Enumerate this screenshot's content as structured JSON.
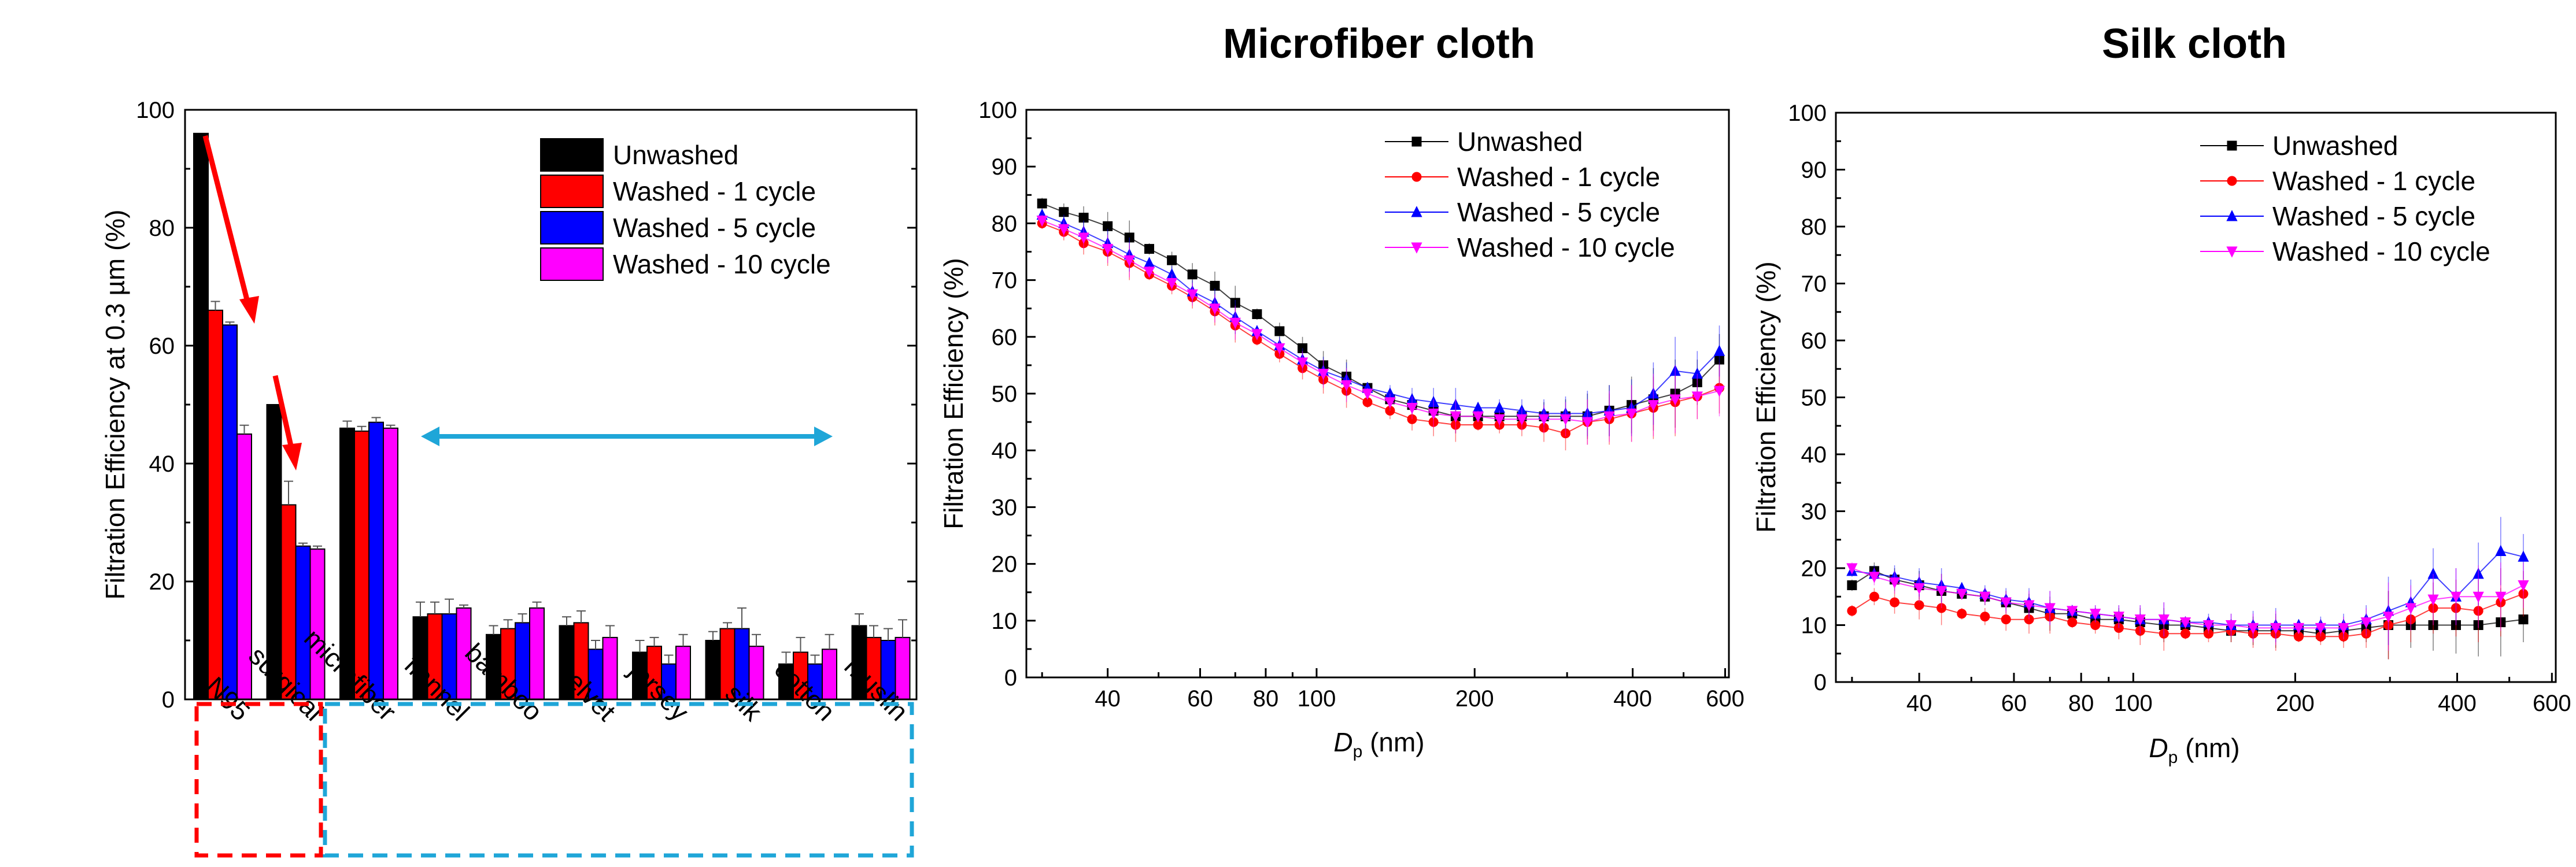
{
  "chart_data": [
    {
      "type": "bar",
      "title": "",
      "ylabel": "Filtration Efficiency at 0.3 µm (%)",
      "xlabel": "",
      "ylim": [
        0,
        100
      ],
      "yticks": [
        0,
        20,
        40,
        60,
        80,
        100
      ],
      "categories": [
        "N95",
        "surgical",
        "microfiber",
        "flannel",
        "bamboo",
        "velvet",
        "jersey",
        "silk",
        "cotton",
        "muslin"
      ],
      "legend_position": "top-right",
      "series": [
        {
          "name": "Unwashed",
          "color": "#000000",
          "values": [
            96,
            50,
            46,
            14,
            11,
            12.5,
            8,
            10,
            6,
            12.5
          ],
          "errors": [
            0,
            0,
            1.2,
            2.5,
            1.5,
            1.5,
            2,
            1.5,
            2,
            2
          ]
        },
        {
          "name": "Washed - 1 cycle",
          "color": "#ff0000",
          "values": [
            66,
            33,
            45.5,
            14.5,
            12,
            13,
            9,
            12,
            8,
            10.5
          ],
          "errors": [
            1.5,
            4,
            0.8,
            2,
            1.5,
            2,
            1.5,
            1,
            2.5,
            2
          ]
        },
        {
          "name": "Washed - 5 cycle",
          "color": "#0000ff",
          "values": [
            63.5,
            26,
            47,
            14.5,
            13,
            8.5,
            6,
            12,
            6,
            10
          ],
          "errors": [
            0.5,
            0.5,
            0.8,
            2.5,
            1.5,
            1.5,
            1.5,
            3.5,
            1.5,
            2
          ]
        },
        {
          "name": "Washed - 10 cycle",
          "color": "#ff00ff",
          "values": [
            45,
            25.5,
            46,
            15.5,
            15.5,
            10.5,
            9,
            9,
            8.5,
            10.5
          ],
          "errors": [
            1.5,
            0.5,
            0.5,
            0.5,
            1,
            2,
            2,
            2,
            2.5,
            3
          ]
        }
      ]
    },
    {
      "type": "line",
      "title": "Microfiber cloth",
      "xlabel": "D",
      "xlabel_sub": "p",
      "xlabel_unit": " (nm)",
      "ylabel": "Filtration Efficiency (%)",
      "xscale": "log",
      "xlim": [
        28,
        610
      ],
      "ylim": [
        0,
        100
      ],
      "xticks": [
        40,
        60,
        80,
        100,
        200,
        400,
        600
      ],
      "yticks": [
        0,
        10,
        20,
        30,
        40,
        50,
        60,
        70,
        80,
        90,
        100
      ],
      "legend_position": "top-right",
      "x": [
        30,
        33,
        36,
        40,
        44,
        48,
        53,
        58,
        64,
        70,
        77,
        85,
        94,
        103,
        114,
        125,
        138,
        152,
        167,
        184,
        203,
        223,
        246,
        271,
        298,
        328,
        361,
        398,
        438,
        482,
        531,
        585
      ],
      "series": [
        {
          "name": "Unwashed",
          "color": "#000000",
          "marker": "square",
          "values": [
            83.5,
            82,
            81,
            79.5,
            77.5,
            75.5,
            73.5,
            71,
            69,
            66,
            64,
            61,
            58,
            55,
            53,
            51,
            49,
            48,
            47,
            46,
            46,
            46,
            46,
            46,
            46,
            46,
            47,
            48,
            49,
            50,
            52,
            56
          ]
        },
        {
          "name": "Washed - 1 cycle",
          "color": "#ff0000",
          "marker": "circle",
          "values": [
            80,
            78.5,
            76.5,
            75,
            73,
            71,
            69,
            67,
            64.5,
            62,
            59.5,
            57,
            54.5,
            52.5,
            50.5,
            48.5,
            47,
            45.5,
            45,
            44.5,
            44.5,
            44.5,
            44.5,
            44,
            43,
            45,
            45.5,
            46.5,
            47.5,
            48.5,
            49.5,
            51
          ]
        },
        {
          "name": "Washed - 5 cycle",
          "color": "#0000ff",
          "marker": "triangle-up",
          "values": [
            81.5,
            80,
            78.5,
            76.5,
            74.5,
            73,
            71,
            68,
            66,
            63.5,
            61,
            58.5,
            56,
            54,
            52.5,
            51,
            50,
            49,
            48.5,
            48,
            47.5,
            47.5,
            47,
            46.5,
            46.5,
            46.5,
            47,
            47.5,
            50,
            54,
            53.5,
            57.5
          ]
        },
        {
          "name": "Washed - 10 cycle",
          "color": "#ff00ff",
          "marker": "triangle-down",
          "values": [
            80.5,
            79,
            77.5,
            75.5,
            73.5,
            71.5,
            69.5,
            67.5,
            65,
            62.5,
            60.5,
            58,
            55.5,
            53.5,
            51.5,
            50,
            48.5,
            47.5,
            46.5,
            46,
            46,
            45.5,
            45.5,
            45.5,
            45.5,
            45,
            46,
            46.5,
            48,
            49,
            49.5,
            50.5
          ]
        }
      ]
    },
    {
      "type": "line",
      "title": "Silk cloth",
      "xlabel": "D",
      "xlabel_sub": "p",
      "xlabel_unit": " (nm)",
      "ylabel": "Filtration Efficiency (%)",
      "xscale": "log",
      "xlim": [
        28,
        610
      ],
      "ylim": [
        0,
        100
      ],
      "xticks": [
        40,
        60,
        80,
        100,
        200,
        400,
        600
      ],
      "yticks": [
        0,
        10,
        20,
        30,
        40,
        50,
        60,
        70,
        80,
        90,
        100
      ],
      "legend_position": "top-right",
      "x": [
        30,
        33,
        36,
        40,
        44,
        48,
        53,
        58,
        64,
        70,
        77,
        85,
        94,
        103,
        114,
        125,
        138,
        152,
        167,
        184,
        203,
        223,
        246,
        271,
        298,
        328,
        361,
        398,
        438,
        482,
        531
      ],
      "series": [
        {
          "name": "Unwashed",
          "color": "#000000",
          "marker": "square",
          "values": [
            17,
            19.5,
            18,
            17,
            16,
            15.5,
            15,
            14,
            13,
            12,
            12,
            11,
            11,
            10.5,
            10,
            10,
            9.5,
            9,
            9,
            9,
            9,
            8.5,
            9,
            9.5,
            10,
            10,
            10,
            10,
            10,
            10.5,
            11
          ]
        },
        {
          "name": "Washed - 1 cycle",
          "color": "#ff0000",
          "marker": "circle",
          "values": [
            12.5,
            15,
            14,
            13.5,
            13,
            12,
            11.5,
            11,
            11,
            11.5,
            10.5,
            10,
            9.5,
            9,
            8.5,
            8.5,
            8.5,
            9,
            8.5,
            8.5,
            8,
            8,
            8,
            8.5,
            10,
            11,
            13,
            13,
            12.5,
            14,
            15.5
          ]
        },
        {
          "name": "Washed - 5 cycle",
          "color": "#0000ff",
          "marker": "triangle-up",
          "values": [
            19.5,
            19,
            18.5,
            17.5,
            17,
            16.5,
            15.5,
            14.5,
            14,
            13,
            12.5,
            12,
            11.5,
            11,
            11,
            10.5,
            10.5,
            10,
            10,
            10,
            10,
            10,
            10,
            11,
            12.5,
            14,
            19,
            15,
            19,
            23,
            22
          ]
        },
        {
          "name": "Washed - 10 cycle",
          "color": "#ff00ff",
          "marker": "triangle-down",
          "values": [
            20,
            18.5,
            17.5,
            16.5,
            16,
            15.5,
            15,
            14,
            13.5,
            13,
            12.5,
            12,
            11.5,
            11,
            11,
            10.5,
            10,
            10,
            9.5,
            9.5,
            9.5,
            9.5,
            9.5,
            10.5,
            11.5,
            13,
            14.5,
            15,
            15,
            15,
            17
          ]
        }
      ]
    }
  ]
}
